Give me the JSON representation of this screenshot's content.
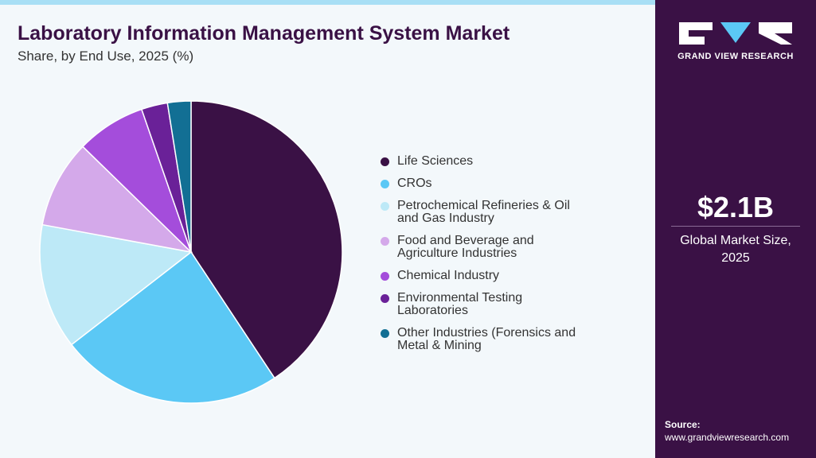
{
  "chart_data": {
    "type": "pie",
    "title": "Laboratory Information Management System Market",
    "subtitle": "Share, by End Use, 2025 (%)",
    "categories": [
      "Life Sciences",
      "CROs",
      "Petrochemical Refineries & Oil and Gas Industry",
      "Food and Beverage and Agriculture Industries",
      "Chemical Industry",
      "Environmental Testing Laboratories",
      "Other Industries (Forensics and Metal & Mining"
    ],
    "values": [
      40.7,
      23.8,
      13.4,
      9.4,
      7.4,
      2.8,
      2.5
    ],
    "colors": [
      "#3a1145",
      "#5bc8f5",
      "#bde9f7",
      "#d4a9ea",
      "#a44ddb",
      "#6a2198",
      "#126f94"
    ]
  },
  "sidebar": {
    "brand": "GRAND VIEW RESEARCH",
    "market_size": "$2.1B",
    "market_size_label": "Global Market Size, 2025",
    "source_label": "Source:",
    "source_url": "www.grandviewresearch.com"
  }
}
